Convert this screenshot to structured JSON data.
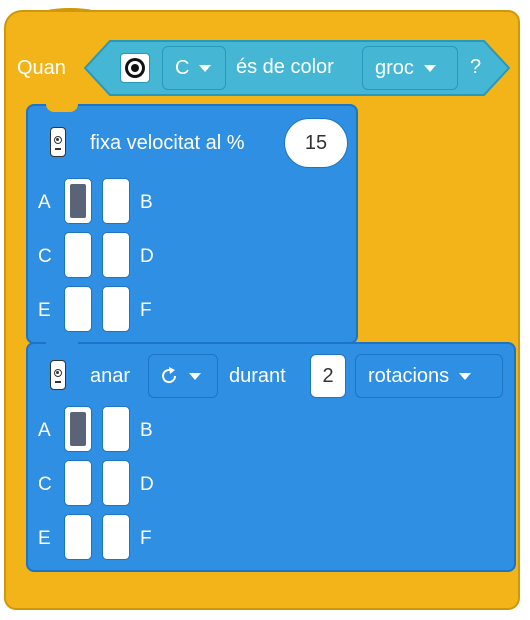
{
  "hat_block": {
    "label": "Quan",
    "sensor_icon": "color-sensor-icon",
    "sensor_port": "C",
    "condition_text": "és de color",
    "color_value": "groc",
    "question": "?",
    "colors": {
      "fill": "#f2b418",
      "hex_fill": "#45b6d4"
    }
  },
  "speed_block": {
    "icon": "hub-icon",
    "label": "fixa velocitat al %",
    "value": "15",
    "ports": [
      {
        "label": "A",
        "selected": true
      },
      {
        "label": "B",
        "selected": false
      },
      {
        "label": "C",
        "selected": false
      },
      {
        "label": "D",
        "selected": false
      },
      {
        "label": "E",
        "selected": false
      },
      {
        "label": "F",
        "selected": false
      }
    ],
    "colors": {
      "fill": "#2f8fe3"
    }
  },
  "move_block": {
    "icon": "hub-icon",
    "label": "anar",
    "direction_icon": "clockwise-rotate-icon",
    "during_text": "durant",
    "amount": "2",
    "unit": "rotacions",
    "ports": [
      {
        "label": "A",
        "selected": true
      },
      {
        "label": "B",
        "selected": false
      },
      {
        "label": "C",
        "selected": false
      },
      {
        "label": "D",
        "selected": false
      },
      {
        "label": "E",
        "selected": false
      },
      {
        "label": "F",
        "selected": false
      }
    ]
  }
}
